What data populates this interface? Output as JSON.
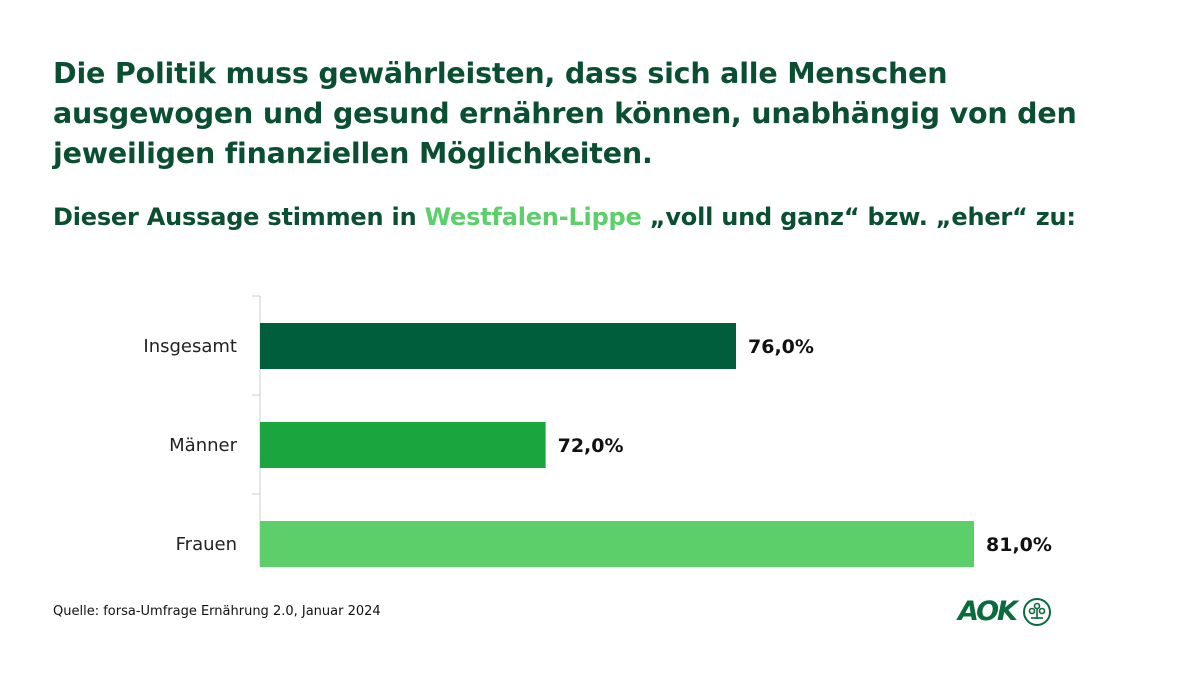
{
  "title": "Die Politik muss gewährleisten, dass sich alle Menschen ausgewogen und gesund ernähren können, unabhängig von den jeweiligen finanziellen Möglichkeiten.",
  "subtitle": {
    "pre": "Dieser Aussage stimmen in ",
    "highlight": "Westfalen-Lippe",
    "post": " „voll und ganz“ bzw. „eher“ zu:"
  },
  "source": "Quelle: forsa-Umfrage  Ernährung 2.0, Januar 2024",
  "logo": {
    "text": "AOK"
  },
  "chart_data": {
    "type": "bar",
    "orientation": "horizontal",
    "categories": [
      "Insgesamt",
      "Männer",
      "Frauen"
    ],
    "values": [
      76.0,
      72.0,
      81.0
    ],
    "labels": [
      "76,0%",
      "72,0%",
      "81,0%"
    ],
    "colors": [
      "#005e3c",
      "#1aa53f",
      "#5ccf6a"
    ],
    "xlim": [
      66,
      86
    ],
    "unit": "%",
    "grid": false
  }
}
